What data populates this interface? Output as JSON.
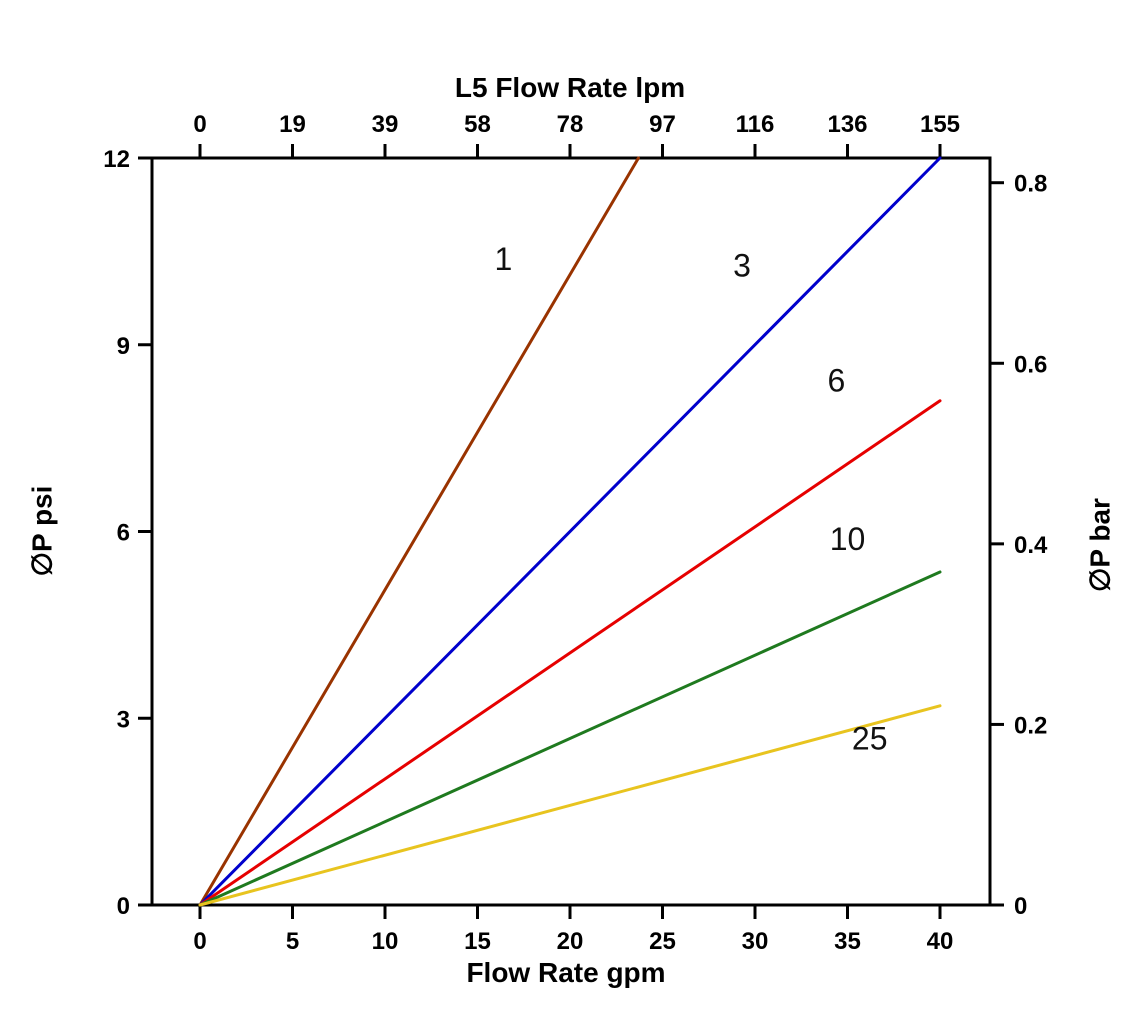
{
  "chart_data": {
    "type": "line",
    "title": "",
    "axes": {
      "top": {
        "label": "L5 Flow Rate lpm",
        "ticks": [
          "0",
          "19",
          "39",
          "58",
          "78",
          "97",
          "116",
          "136",
          "155"
        ]
      },
      "bottom": {
        "label": "Flow Rate gpm",
        "ticks": [
          "0",
          "5",
          "10",
          "15",
          "20",
          "25",
          "30",
          "35",
          "40"
        ]
      },
      "left": {
        "label": "∅P psi",
        "ticks": [
          "0",
          "3",
          "6",
          "9",
          "12"
        ],
        "range": [
          0,
          12
        ]
      },
      "right": {
        "label": "∅P bar",
        "ticks": [
          "0",
          "0.2",
          "0.4",
          "0.6",
          "0.8"
        ],
        "psi_per_bar": 14.5038
      }
    },
    "x_range_gpm": [
      0,
      40
    ],
    "grid": false,
    "legend": "inline-labels",
    "series": [
      {
        "name": "1",
        "color": "#993300",
        "points": [
          [
            0,
            0
          ],
          [
            23.7,
            12
          ]
        ],
        "label_pos": [
          16.4,
          10.2
        ]
      },
      {
        "name": "3",
        "color": "#0000cc",
        "points": [
          [
            0,
            0
          ],
          [
            40,
            12
          ]
        ],
        "label_pos": [
          29.3,
          10.1
        ]
      },
      {
        "name": "6",
        "color": "#e60000",
        "points": [
          [
            0,
            0
          ],
          [
            40,
            8.1
          ]
        ],
        "label_pos": [
          34.4,
          8.25
        ]
      },
      {
        "name": "10",
        "color": "#1f7a1f",
        "points": [
          [
            0,
            0
          ],
          [
            40,
            5.35
          ]
        ],
        "label_pos": [
          35.0,
          5.7
        ]
      },
      {
        "name": "25",
        "color": "#e8c41f",
        "points": [
          [
            0,
            0
          ],
          [
            40,
            3.2
          ]
        ],
        "label_pos": [
          36.2,
          2.5
        ]
      }
    ]
  }
}
